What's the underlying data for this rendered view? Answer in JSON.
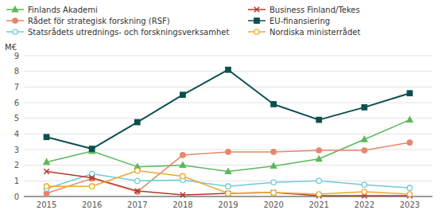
{
  "chart_data": {
    "type": "line",
    "ylabel": "M€",
    "categories": [
      "2015",
      "2016",
      "2017",
      "2018",
      "2019",
      "2020",
      "2021",
      "2022",
      "2023"
    ],
    "series": [
      {
        "name": "Finlands Akademi",
        "color": "#5cb85c",
        "marker": "triangle",
        "values": [
          2.2,
          2.9,
          1.9,
          2.0,
          1.6,
          1.95,
          2.4,
          3.65,
          4.9
        ]
      },
      {
        "name": "Rådet för strategisk forskning (RSF)",
        "color": "#e8866a",
        "marker": "circle",
        "values": [
          0.2,
          1.15,
          0.3,
          2.65,
          2.85,
          2.85,
          2.95,
          2.95,
          3.45
        ]
      },
      {
        "name": "Statsrådets utrednings- och forskningsverksamhet",
        "color": "#6eccd8",
        "marker": "open-circle",
        "values": [
          0.5,
          1.45,
          1.0,
          1.05,
          0.65,
          0.9,
          1.0,
          0.75,
          0.55
        ]
      },
      {
        "name": "Business Finland/Tekes",
        "color": "#b03a2e",
        "marker": "x",
        "values": [
          1.6,
          1.2,
          0.35,
          0.1,
          0.2,
          0.25,
          0.05,
          0.05,
          0.05
        ]
      },
      {
        "name": "EU-finansiering",
        "color": "#0d4f4f",
        "marker": "square",
        "values": [
          3.8,
          3.05,
          4.75,
          6.5,
          8.1,
          5.9,
          4.9,
          5.7,
          6.6
        ]
      },
      {
        "name": "Nordiska ministerrådet",
        "color": "#f0a830",
        "marker": "open-circle",
        "values": [
          0.65,
          0.65,
          1.65,
          1.3,
          0.2,
          0.25,
          0.15,
          0.3,
          0.15
        ]
      }
    ],
    "ylim": [
      0,
      9
    ],
    "yticks": [
      0,
      1,
      2,
      3,
      4,
      5,
      6,
      7,
      8,
      9
    ],
    "grid": true,
    "legend": "top"
  }
}
